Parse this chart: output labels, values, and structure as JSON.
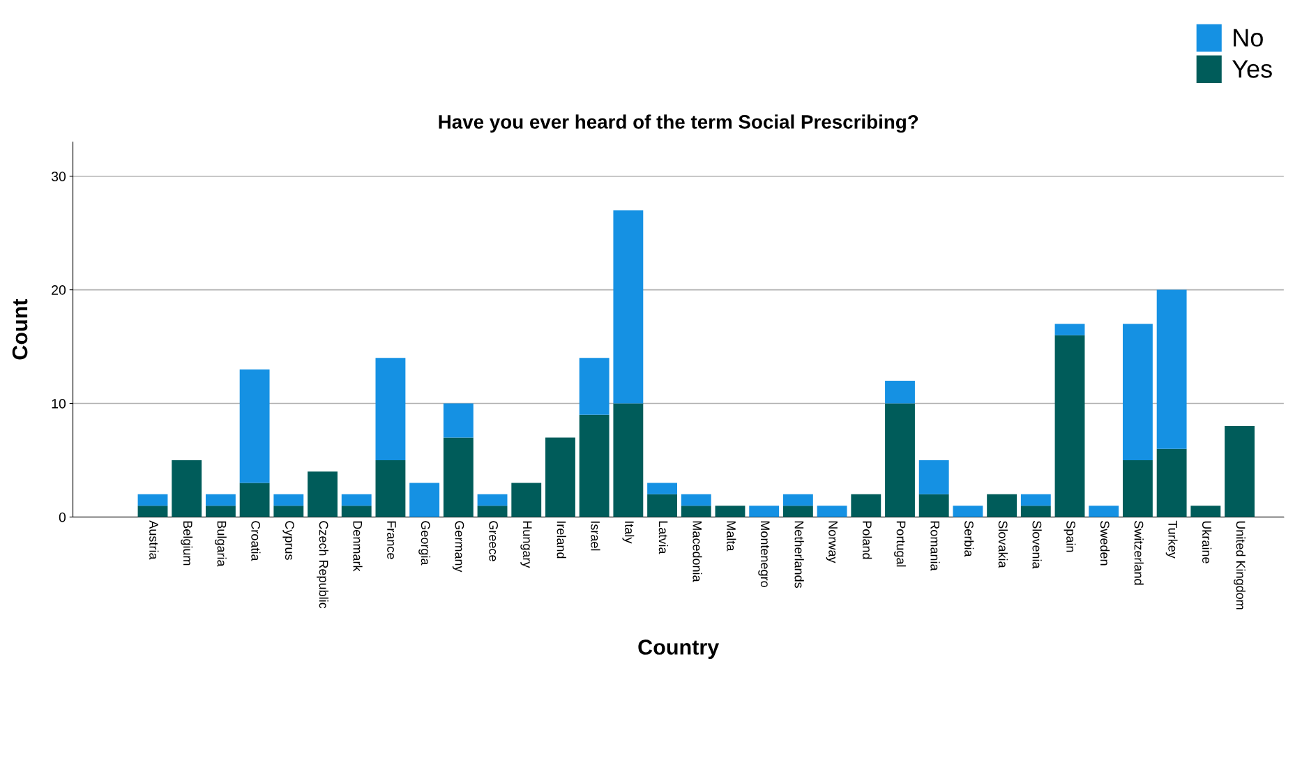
{
  "chart_data": {
    "type": "bar",
    "title": "Have you ever heard of the term Social Prescribing?",
    "xlabel": "Country",
    "ylabel": "Count",
    "categories": [
      "Austria",
      "Belgium",
      "Bulgaria",
      "Croatia",
      "Cyprus",
      "Czech Republic",
      "Denmark",
      "France",
      "Georgia",
      "Germany",
      "Greece",
      "Hungary",
      "Ireland",
      "Israel",
      "Italy",
      "Latvia",
      "Macedonia",
      "Malta",
      "Montenegro",
      "Netherlands",
      "Norway",
      "Poland",
      "Portugal",
      "Romania",
      "Serbia",
      "Slovakia",
      "Slovenia",
      "Spain",
      "Sweden",
      "Switzerland",
      "Turkey",
      "Ukraine",
      "United Kingdom"
    ],
    "stacked": true,
    "series": [
      {
        "name": "Yes",
        "color": "#005c5a",
        "values": [
          1,
          5,
          1,
          3,
          1,
          4,
          1,
          5,
          0,
          7,
          1,
          3,
          7,
          9,
          10,
          2,
          1,
          1,
          0,
          1,
          0,
          2,
          10,
          2,
          0,
          2,
          1,
          16,
          0,
          5,
          6,
          1,
          8
        ]
      },
      {
        "name": "No",
        "color": "#1591e3",
        "values": [
          1,
          0,
          1,
          10,
          1,
          0,
          1,
          9,
          3,
          3,
          1,
          0,
          0,
          5,
          17,
          1,
          1,
          0,
          1,
          1,
          1,
          0,
          2,
          3,
          1,
          0,
          1,
          1,
          1,
          12,
          14,
          0,
          0
        ]
      }
    ],
    "ylim": [
      0,
      33
    ],
    "yticks": [
      0,
      10,
      20,
      30
    ],
    "grid": "y",
    "legend": "top right"
  }
}
